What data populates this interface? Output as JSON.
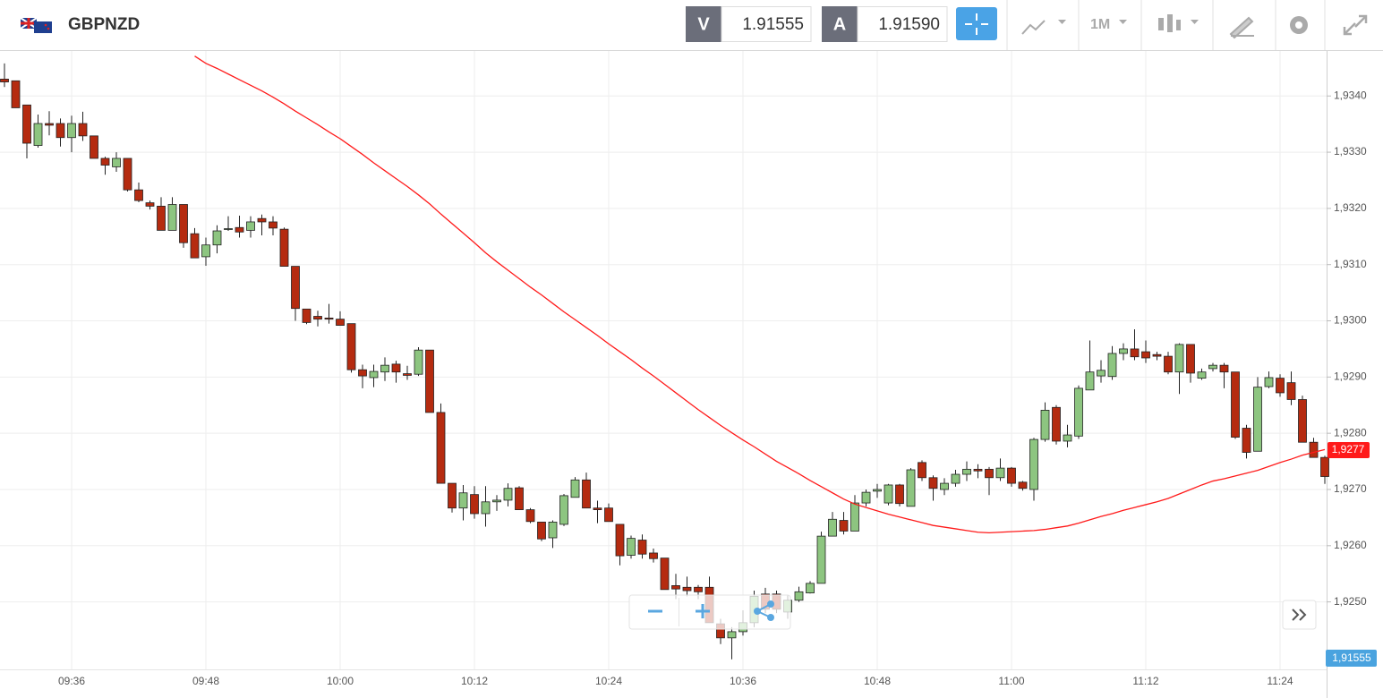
{
  "header": {
    "symbol": "GBPNZD",
    "bid_tag": "V",
    "bid": "1.91555",
    "ask_tag": "A",
    "ask": "1.91590",
    "timeframe": "1M"
  },
  "chart_data": {
    "type": "candlestick",
    "categories": [
      null,
      null,
      null,
      null,
      null,
      null,
      "09:36",
      null,
      null,
      null,
      null,
      null,
      null,
      null,
      null,
      null,
      null,
      null,
      "09:48",
      null,
      null,
      null,
      null,
      null,
      null,
      null,
      null,
      null,
      null,
      null,
      "10:00",
      null,
      null,
      null,
      null,
      null,
      null,
      null,
      null,
      null,
      null,
      null,
      "10:12",
      null,
      null,
      null,
      null,
      null,
      null,
      null,
      null,
      null,
      null,
      null,
      "10:24",
      null,
      null,
      null,
      null,
      null,
      null,
      null,
      null,
      null,
      null,
      null,
      "10:36",
      null,
      null,
      null,
      null,
      null,
      null,
      null,
      null,
      null,
      null,
      null,
      "10:48",
      null,
      null,
      null,
      null,
      null,
      null,
      null,
      null,
      null,
      null,
      null,
      "11:00",
      null,
      null,
      null,
      null,
      null,
      null,
      null,
      null,
      null,
      null,
      null,
      "11:12",
      null,
      null,
      null,
      null,
      null,
      null,
      null,
      null,
      null,
      null,
      null,
      "11:24",
      null,
      null,
      null,
      null
    ],
    "open": [
      1.9343,
      1.93427,
      1.93384,
      1.93312,
      1.93351,
      1.93351,
      1.93326,
      1.93351,
      1.93329,
      1.93289,
      1.93274,
      1.93289,
      1.93233,
      1.9321,
      1.93204,
      1.93161,
      1.93207,
      1.93155,
      1.93114,
      1.93135,
      1.93163,
      1.93166,
      1.93161,
      1.93182,
      1.93176,
      1.93163,
      1.93097,
      1.93021,
      1.93008,
      1.93005,
      1.93003,
      1.92995,
      1.92913,
      1.92899,
      1.92909,
      1.92923,
      1.92906,
      1.92905,
      1.92948,
      1.92837,
      1.92711,
      1.92667,
      1.92691,
      1.92657,
      1.92678,
      1.92681,
      1.92703,
      1.92664,
      1.92642,
      1.92614,
      1.92638,
      1.92686,
      1.92717,
      1.92667,
      1.92667,
      1.92638,
      1.92583,
      1.9261,
      1.92587,
      1.92578,
      1.92529,
      1.92526,
      1.92526,
      1.92526,
      1.92461,
      1.92436,
      1.92447,
      1.92463,
      1.92514,
      1.92514,
      1.92482,
      1.92503,
      1.92516,
      1.92533,
      1.92617,
      1.92645,
      1.92626,
      1.92676,
      1.92697,
      1.92676,
      1.92708,
      1.9267,
      1.92748,
      1.92721,
      1.927,
      1.92711,
      1.92727,
      1.92736,
      1.92736,
      1.92721,
      1.92738,
      1.92713,
      1.927,
      1.92789,
      1.92846,
      1.92786,
      1.92795,
      1.92877,
      1.92902,
      1.92901,
      1.92942,
      1.9295,
      1.92945,
      1.9294,
      1.92937,
      1.92909,
      1.92958,
      1.92898,
      1.92915,
      1.92921,
      1.92909,
      1.92809,
      1.92768,
      1.92883,
      1.92898,
      1.9289,
      1.9286,
      1.92784,
      1.92757
    ],
    "high": [
      1.93458,
      1.93427,
      1.93384,
      1.93367,
      1.93373,
      1.9336,
      1.93365,
      1.93372,
      1.93329,
      1.93292,
      1.933,
      1.93289,
      1.93246,
      1.93214,
      1.9322,
      1.9322,
      1.93207,
      1.93165,
      1.93148,
      1.9317,
      1.93186,
      1.93187,
      1.93186,
      1.93189,
      1.93186,
      1.93166,
      1.93097,
      1.93021,
      1.93018,
      1.9303,
      1.93017,
      1.92995,
      1.92922,
      1.92922,
      1.92935,
      1.92929,
      1.9292,
      1.92953,
      1.92948,
      1.92853,
      1.92711,
      1.92708,
      1.92706,
      1.92706,
      1.9269,
      1.92711,
      1.92706,
      1.92667,
      1.92642,
      1.92645,
      1.92692,
      1.92722,
      1.9273,
      1.9268,
      1.92675,
      1.92638,
      1.92618,
      1.9262,
      1.92595,
      1.92578,
      1.9255,
      1.92545,
      1.9253,
      1.92545,
      1.9247,
      1.92455,
      1.92485,
      1.9252,
      1.92525,
      1.9252,
      1.92512,
      1.92527,
      1.92537,
      1.92625,
      1.9266,
      1.9266,
      1.9269,
      1.927,
      1.9271,
      1.9271,
      1.9271,
      1.92738,
      1.92752,
      1.92725,
      1.9272,
      1.92735,
      1.9275,
      1.92745,
      1.9274,
      1.92755,
      1.9274,
      1.92715,
      1.92792,
      1.92855,
      1.9285,
      1.92815,
      1.92885,
      1.92965,
      1.9293,
      1.92955,
      1.9296,
      1.92985,
      1.92965,
      1.92945,
      1.92945,
      1.9296,
      1.92958,
      1.92915,
      1.92925,
      1.92925,
      1.92909,
      1.92815,
      1.929,
      1.9291,
      1.92905,
      1.9291,
      1.92867,
      1.92792,
      1.9276
    ],
    "low": [
      1.93416,
      1.93379,
      1.93289,
      1.93308,
      1.9333,
      1.9331,
      1.933,
      1.9332,
      1.93289,
      1.9326,
      1.93265,
      1.9323,
      1.93211,
      1.93198,
      1.93161,
      1.93161,
      1.9313,
      1.93112,
      1.93098,
      1.9312,
      1.9316,
      1.93148,
      1.93148,
      1.93152,
      1.93152,
      1.93097,
      1.93,
      1.92994,
      1.9299,
      1.92995,
      1.92992,
      1.92908,
      1.9288,
      1.92882,
      1.92893,
      1.9289,
      1.92895,
      1.92902,
      1.92837,
      1.92711,
      1.92659,
      1.92645,
      1.92648,
      1.92634,
      1.92662,
      1.9267,
      1.92664,
      1.9264,
      1.92608,
      1.92596,
      1.92635,
      1.92686,
      1.92667,
      1.9264,
      1.92643,
      1.92565,
      1.92577,
      1.92577,
      1.9257,
      1.92522,
      1.92505,
      1.9251,
      1.92505,
      1.92463,
      1.92425,
      1.92398,
      1.9244,
      1.92455,
      1.9248,
      1.9248,
      1.9247,
      1.925,
      1.92515,
      1.92533,
      1.92617,
      1.9262,
      1.92626,
      1.9267,
      1.92685,
      1.92672,
      1.9267,
      1.9267,
      1.92715,
      1.9268,
      1.9269,
      1.92705,
      1.92715,
      1.9272,
      1.9269,
      1.92715,
      1.92705,
      1.92698,
      1.9268,
      1.92785,
      1.9278,
      1.92775,
      1.9279,
      1.92877,
      1.9289,
      1.92895,
      1.9293,
      1.9293,
      1.92925,
      1.9293,
      1.92905,
      1.9287,
      1.9289,
      1.92895,
      1.9291,
      1.9288,
      1.9279,
      1.92755,
      1.92768,
      1.9288,
      1.92865,
      1.9285,
      1.92784,
      1.92757,
      1.9271
    ],
    "close": [
      1.93425,
      1.93379,
      1.93316,
      1.93351,
      1.93348,
      1.93326,
      1.93351,
      1.93329,
      1.93289,
      1.93277,
      1.93289,
      1.93233,
      1.93214,
      1.93204,
      1.93161,
      1.93207,
      1.93139,
      1.93112,
      1.93135,
      1.9316,
      1.93164,
      1.93158,
      1.93176,
      1.93176,
      1.93165,
      1.93097,
      1.93022,
      1.92997,
      1.93003,
      1.93003,
      1.92992,
      1.92913,
      1.92902,
      1.9291,
      1.92921,
      1.92909,
      1.92903,
      1.92948,
      1.92837,
      1.92711,
      1.92667,
      1.92694,
      1.92657,
      1.92678,
      1.92681,
      1.92702,
      1.92664,
      1.92643,
      1.92612,
      1.92642,
      1.92689,
      1.92717,
      1.92667,
      1.92664,
      1.92643,
      1.92582,
      1.92613,
      1.92585,
      1.92577,
      1.92522,
      1.92523,
      1.9252,
      1.92518,
      1.92463,
      1.92436,
      1.92447,
      1.92463,
      1.9251,
      1.92487,
      1.92487,
      1.92503,
      1.92518,
      1.92533,
      1.92617,
      1.92647,
      1.92626,
      1.92676,
      1.92695,
      1.927,
      1.92708,
      1.92675,
      1.92735,
      1.92721,
      1.92702,
      1.92711,
      1.92727,
      1.92736,
      1.92733,
      1.92721,
      1.92738,
      1.92711,
      1.92702,
      1.92789,
      1.92841,
      1.92786,
      1.92797,
      1.9288,
      1.92909,
      1.92912,
      1.92942,
      1.9295,
      1.92936,
      1.92934,
      1.92937,
      1.92909,
      1.92958,
      1.92907,
      1.92909,
      1.92921,
      1.92909,
      1.92793,
      1.92766,
      1.92882,
      1.92899,
      1.92872,
      1.9286,
      1.92784,
      1.92757,
      1.92723
    ],
    "up_color": "#8dc580",
    "down_color": "#b52b10",
    "overlay_line": {
      "color": "#ff1a1a",
      "values": [
        null,
        null,
        null,
        null,
        null,
        null,
        null,
        null,
        null,
        null,
        null,
        null,
        null,
        null,
        null,
        null,
        null,
        1.93471,
        1.93458,
        1.93449,
        1.93439,
        1.93429,
        1.93419,
        1.93409,
        1.93398,
        1.93386,
        1.93373,
        1.93361,
        1.93349,
        1.93336,
        1.93324,
        1.9331,
        1.93296,
        1.93281,
        1.93267,
        1.93253,
        1.93239,
        1.93224,
        1.93208,
        1.9319,
        1.93173,
        1.93156,
        1.93139,
        1.93121,
        1.93105,
        1.9309,
        1.93075,
        1.9306,
        1.93046,
        1.93031,
        1.93016,
        1.93002,
        1.92988,
        1.92974,
        1.92959,
        1.92945,
        1.92931,
        1.92916,
        1.92902,
        1.92887,
        1.92872,
        1.92857,
        1.92842,
        1.92828,
        1.92814,
        1.92801,
        1.92788,
        1.92776,
        1.92763,
        1.9275,
        1.92739,
        1.92728,
        1.92716,
        1.92705,
        1.92694,
        1.92683,
        1.92674,
        1.92668,
        1.92662,
        1.92656,
        1.92651,
        1.92646,
        1.92641,
        1.92636,
        1.92633,
        1.9263,
        1.92627,
        1.92624,
        1.92623,
        1.92624,
        1.92625,
        1.92626,
        1.92627,
        1.92629,
        1.92632,
        1.92635,
        1.9264,
        1.92646,
        1.92652,
        1.92657,
        1.92663,
        1.92668,
        1.92673,
        1.92678,
        1.92684,
        1.92692,
        1.927,
        1.92708,
        1.92715,
        1.92719,
        1.92724,
        1.92729,
        1.92734,
        1.92741,
        1.92748,
        1.92754,
        1.92761,
        1.92766,
        1.92771
      ]
    },
    "price_tag": {
      "value": 1.9277,
      "label": "1,9277"
    },
    "bid_tag": "1,91555",
    "ylim": [
      1.9238,
      1.9348
    ],
    "yticks": [
      {
        "value": 1.925,
        "label": "1,9250"
      },
      {
        "value": 1.926,
        "label": "1,9260"
      },
      {
        "value": 1.927,
        "label": "1,9270"
      },
      {
        "value": 1.928,
        "label": "1,9280"
      },
      {
        "value": 1.929,
        "label": "1,9290"
      },
      {
        "value": 1.93,
        "label": "1,9300"
      },
      {
        "value": 1.931,
        "label": "1,9310"
      },
      {
        "value": 1.932,
        "label": "1,9320"
      },
      {
        "value": 1.933,
        "label": "1,9330"
      },
      {
        "value": 1.934,
        "label": "1,9340"
      }
    ],
    "grid": true
  }
}
